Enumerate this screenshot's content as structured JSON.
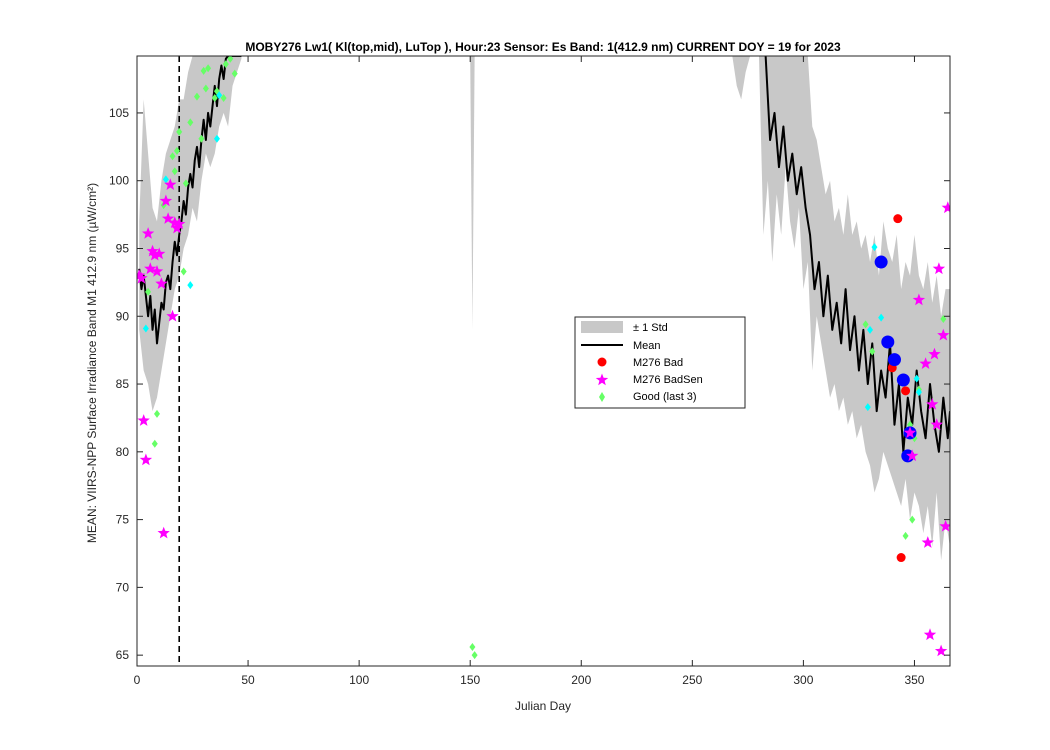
{
  "chart_data": {
    "type": "line",
    "title": "MOBY276   Lw1( Kl(top,mid), LuTop ),   Hour:23 Sensor: Es Band: 1(412.9 nm)   CURRENT DOY = 19 for 2023",
    "xlabel": "Julian Day",
    "ylabel": "MEAN: VIIRS-NPP Surface Irradiance Band M1 412.9 nm (µW/cm²)",
    "xlim": [
      0,
      366
    ],
    "ylim": [
      64.2,
      109.2
    ],
    "x_ticks": [
      0,
      50,
      100,
      150,
      200,
      250,
      300,
      350
    ],
    "y_ticks": [
      65,
      70,
      75,
      80,
      85,
      90,
      95,
      100,
      105
    ],
    "grid": false,
    "legend_position": "center-right",
    "current_doy": 19,
    "colors": {
      "mean": "#000000",
      "std_band": "#c8c8c8",
      "bad": "#ff0000",
      "badsen": "#ff00ff",
      "good": "#66ff66",
      "cyan_points": "#00ffff",
      "blue_points": "#0000ff"
    },
    "legend": {
      "std": "± 1 Std",
      "mean": "Mean",
      "bad": "M276 Bad",
      "badsen": "M276 BadSen",
      "good": "Good (last 3)"
    },
    "std_band": [
      [
        [
          1,
          89,
          97
        ],
        [
          3,
          86,
          106
        ],
        [
          5,
          85,
          102
        ],
        [
          7,
          83,
          98
        ],
        [
          9,
          84,
          97
        ],
        [
          11,
          86,
          100
        ],
        [
          13,
          88,
          102
        ],
        [
          15,
          90,
          103
        ],
        [
          17,
          92,
          104
        ],
        [
          19,
          93,
          106
        ],
        [
          21,
          95,
          106
        ],
        [
          23,
          96,
          108
        ],
        [
          25,
          98,
          109.2
        ],
        [
          27,
          97,
          109.2
        ],
        [
          29,
          100,
          109.2
        ],
        [
          31,
          102,
          109.2
        ],
        [
          33,
          101,
          109.2
        ],
        [
          35,
          102,
          109.2
        ],
        [
          37,
          104,
          109.2
        ],
        [
          39,
          105,
          109.2
        ],
        [
          41,
          104,
          109.2
        ],
        [
          43,
          107,
          109.2
        ],
        [
          45,
          108,
          109.2
        ],
        [
          47,
          109,
          109.2
        ]
      ],
      [
        [
          150,
          109.2,
          109.2
        ],
        [
          151,
          89,
          109.2
        ],
        [
          152,
          109.2,
          109.2
        ]
      ],
      [
        [
          268,
          109.2,
          109.2
        ],
        [
          270,
          107,
          109.2
        ],
        [
          272,
          106,
          109.2
        ],
        [
          274,
          108,
          109.2
        ],
        [
          276,
          109.2,
          109.2
        ]
      ],
      [
        [
          280,
          109.2,
          109.2
        ],
        [
          282,
          96,
          109.2
        ],
        [
          284,
          100,
          109.2
        ],
        [
          286,
          94,
          109.2
        ],
        [
          288,
          99,
          109.2
        ],
        [
          290,
          96,
          109.2
        ],
        [
          292,
          101,
          109.2
        ],
        [
          294,
          97,
          109.2
        ],
        [
          296,
          95,
          109.2
        ],
        [
          298,
          98,
          109.2
        ],
        [
          300,
          92,
          109.2
        ],
        [
          302,
          94,
          109.2
        ],
        [
          304,
          86,
          104
        ],
        [
          306,
          90,
          103
        ],
        [
          308,
          88,
          101
        ],
        [
          310,
          86,
          99
        ],
        [
          312,
          84,
          100
        ],
        [
          314,
          85,
          97
        ],
        [
          316,
          83,
          98
        ],
        [
          318,
          84,
          96
        ],
        [
          320,
          82,
          99
        ],
        [
          322,
          83,
          96
        ],
        [
          324,
          81,
          97
        ],
        [
          326,
          82,
          95
        ],
        [
          328,
          80,
          96
        ],
        [
          330,
          79,
          94
        ],
        [
          332,
          77,
          96
        ],
        [
          334,
          78,
          93
        ],
        [
          336,
          80,
          97
        ],
        [
          338,
          79,
          95
        ],
        [
          340,
          78,
          94
        ],
        [
          342,
          77,
          96
        ],
        [
          344,
          76,
          92
        ],
        [
          346,
          78,
          94
        ],
        [
          348,
          75,
          93
        ],
        [
          350,
          77,
          96
        ],
        [
          352,
          76,
          93
        ],
        [
          354,
          74,
          92
        ],
        [
          356,
          76,
          94
        ],
        [
          358,
          73,
          91
        ],
        [
          360,
          77,
          93
        ],
        [
          362,
          72,
          90
        ],
        [
          364,
          75,
          92
        ],
        [
          366,
          73,
          92
        ]
      ]
    ],
    "mean_series": [
      [
        [
          1,
          93.5
        ],
        [
          2,
          92
        ],
        [
          3,
          93
        ],
        [
          4,
          91.5
        ],
        [
          5,
          90
        ],
        [
          6,
          91.5
        ],
        [
          7,
          89
        ],
        [
          8,
          90.5
        ],
        [
          9,
          88
        ],
        [
          10,
          89.5
        ],
        [
          11,
          91
        ],
        [
          12,
          90.5
        ],
        [
          13,
          92.5
        ],
        [
          14,
          93
        ],
        [
          15,
          92
        ],
        [
          16,
          94
        ],
        [
          17,
          95.5
        ],
        [
          18,
          94.5
        ],
        [
          19,
          96
        ],
        [
          20,
          97
        ],
        [
          21,
          98.5
        ],
        [
          22,
          97.5
        ],
        [
          23,
          99.5
        ],
        [
          24,
          100.5
        ],
        [
          25,
          99.5
        ],
        [
          26,
          101.5
        ],
        [
          27,
          102.5
        ],
        [
          28,
          101
        ],
        [
          29,
          103
        ],
        [
          30,
          104.5
        ],
        [
          31,
          103
        ],
        [
          32,
          105
        ],
        [
          33,
          104
        ],
        [
          34,
          105.5
        ],
        [
          35,
          107
        ],
        [
          36,
          105.5
        ],
        [
          37,
          107.5
        ],
        [
          38,
          108.5
        ],
        [
          39,
          107.5
        ],
        [
          40,
          109
        ],
        [
          41,
          109.2
        ],
        [
          47,
          109.2
        ]
      ],
      [
        [
          283,
          109.2
        ],
        [
          285,
          103
        ],
        [
          287,
          105
        ],
        [
          289,
          101
        ],
        [
          291,
          104
        ],
        [
          293,
          100
        ],
        [
          295,
          102
        ],
        [
          297,
          99
        ],
        [
          299,
          101
        ],
        [
          301,
          98
        ],
        [
          303,
          96
        ],
        [
          305,
          92
        ],
        [
          307,
          94
        ],
        [
          309,
          90
        ],
        [
          311,
          93
        ],
        [
          313,
          89
        ],
        [
          315,
          91
        ],
        [
          317,
          88
        ],
        [
          319,
          92
        ],
        [
          321,
          87.5
        ],
        [
          323,
          90
        ],
        [
          325,
          86
        ],
        [
          327,
          89
        ],
        [
          329,
          85
        ],
        [
          331,
          88
        ],
        [
          333,
          83
        ],
        [
          335,
          86
        ],
        [
          337,
          84
        ],
        [
          339,
          88
        ],
        [
          341,
          82
        ],
        [
          343,
          85
        ],
        [
          345,
          80
        ],
        [
          347,
          84
        ],
        [
          349,
          82
        ],
        [
          351,
          86
        ],
        [
          353,
          83
        ],
        [
          355,
          81
        ],
        [
          357,
          85
        ],
        [
          359,
          82
        ],
        [
          361,
          80
        ],
        [
          363,
          84
        ],
        [
          365,
          81
        ],
        [
          366,
          83
        ]
      ]
    ],
    "bad_points": [
      [
        342.5,
        97.2
      ],
      [
        340,
        86.2
      ],
      [
        346,
        84.5
      ],
      [
        344,
        72.2
      ]
    ],
    "badsen_points": [
      [
        1,
        93
      ],
      [
        2,
        92.8
      ],
      [
        3,
        82.3
      ],
      [
        4,
        79.4
      ],
      [
        5,
        96.1
      ],
      [
        6,
        93.5
      ],
      [
        7,
        94.8
      ],
      [
        8,
        94.5
      ],
      [
        9,
        93.3
      ],
      [
        10,
        94.6
      ],
      [
        11,
        92.4
      ],
      [
        12,
        74
      ],
      [
        13,
        98.5
      ],
      [
        14,
        97.2
      ],
      [
        15,
        99.7
      ],
      [
        16,
        90
      ],
      [
        17,
        96.9
      ],
      [
        18,
        96.5
      ],
      [
        19,
        96.8
      ],
      [
        352,
        91.2
      ],
      [
        355,
        86.5
      ],
      [
        356,
        73.3
      ],
      [
        357,
        66.5
      ],
      [
        358,
        83.5
      ],
      [
        359,
        87.2
      ],
      [
        360,
        82
      ],
      [
        361,
        93.5
      ],
      [
        362,
        65.3
      ],
      [
        363,
        88.6
      ],
      [
        364,
        74.5
      ],
      [
        365,
        98
      ],
      [
        349,
        79.7
      ],
      [
        348,
        81.4
      ]
    ],
    "good_points": [
      [
        5,
        91.8
      ],
      [
        8,
        80.6
      ],
      [
        9,
        82.8
      ],
      [
        12,
        98.2
      ],
      [
        16,
        101.8
      ],
      [
        17,
        100.7
      ],
      [
        18,
        102.2
      ],
      [
        19,
        103.6
      ],
      [
        21,
        93.3
      ],
      [
        22,
        99.8
      ],
      [
        24,
        104.3
      ],
      [
        27,
        106.2
      ],
      [
        29,
        103.1
      ],
      [
        30,
        108.1
      ],
      [
        31,
        106.8
      ],
      [
        32,
        108.3
      ],
      [
        35,
        106.1
      ],
      [
        36,
        106.6
      ],
      [
        39,
        106.1
      ],
      [
        40,
        108.6
      ],
      [
        42,
        109
      ],
      [
        44,
        107.9
      ],
      [
        151,
        65.6
      ],
      [
        152,
        65
      ],
      [
        328,
        89.4
      ],
      [
        331,
        87.4
      ],
      [
        346,
        73.8
      ],
      [
        348,
        82
      ],
      [
        349,
        75
      ],
      [
        350,
        81
      ],
      [
        352,
        84.6
      ],
      [
        363,
        89.8
      ]
    ],
    "cyan_points": [
      [
        4,
        89.1
      ],
      [
        13,
        100.1
      ],
      [
        24,
        92.3
      ],
      [
        36,
        103.1
      ],
      [
        37,
        106.3
      ],
      [
        332,
        95.1
      ],
      [
        335,
        89.9
      ],
      [
        329,
        83.3
      ],
      [
        330,
        89
      ],
      [
        351,
        85.4
      ],
      [
        352,
        84.4
      ]
    ],
    "blue_points": [
      [
        335,
        94
      ],
      [
        338,
        88.1
      ],
      [
        341,
        86.8
      ],
      [
        345,
        85.3
      ],
      [
        348,
        81.4
      ],
      [
        347,
        79.7
      ]
    ]
  }
}
